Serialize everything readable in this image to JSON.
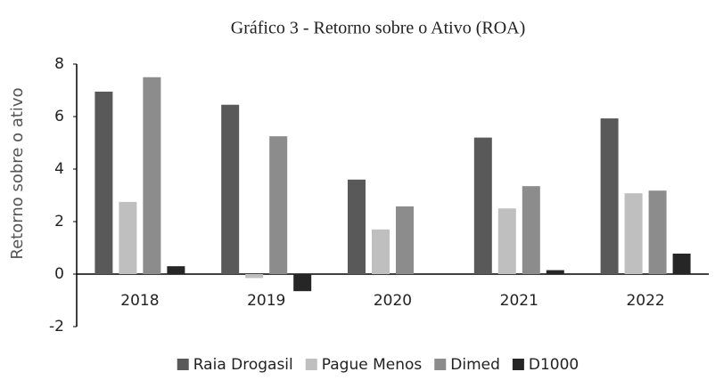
{
  "chart_data": {
    "type": "bar",
    "title": "Gráfico 3 - Retorno sobre o Ativo (ROA)",
    "y_label": "Retorno sobre o ativo",
    "categories": [
      "2018",
      "2019",
      "2020",
      "2021",
      "2022"
    ],
    "series": [
      {
        "name": "Raia Drogasil",
        "color": "#595959",
        "values": [
          6.95,
          6.45,
          3.6,
          5.2,
          5.93
        ]
      },
      {
        "name": "Pague Menos",
        "color": "#bfbfbf",
        "values": [
          2.75,
          -0.15,
          1.7,
          2.5,
          3.08
        ]
      },
      {
        "name": "Dimed",
        "color": "#8c8c8c",
        "values": [
          7.5,
          5.25,
          2.58,
          3.35,
          3.18
        ]
      },
      {
        "name": "D1000",
        "color": "#262626",
        "values": [
          0.3,
          -0.65,
          null,
          0.15,
          0.78
        ]
      }
    ],
    "ylim": [
      -2,
      8
    ],
    "yticks": [
      -2,
      0,
      2,
      4,
      6,
      8
    ],
    "grid": false,
    "legend": "bottom"
  }
}
